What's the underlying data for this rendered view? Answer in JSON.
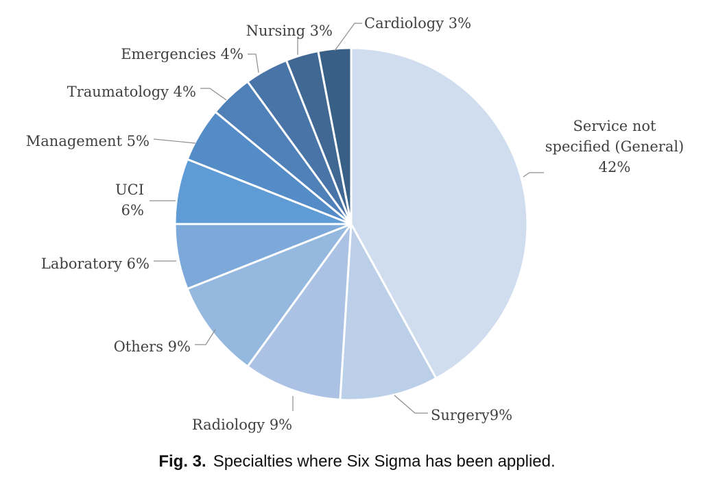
{
  "chart_data": {
    "type": "pie",
    "title": "",
    "start": "12 o'clock",
    "direction": "clockwise",
    "slices": [
      {
        "name": "Service not specified (General)",
        "value": 42,
        "color": "#d0ddef",
        "label_lines": [
          "Service not",
          "specified (General)",
          "42%"
        ]
      },
      {
        "name": "Surgery",
        "value": 9,
        "color": "#bccfe9",
        "label_lines": [
          "Surgery9%"
        ]
      },
      {
        "name": "Radiology",
        "value": 9,
        "color": "#acc2e4",
        "label_lines": [
          "Radiology 9%"
        ]
      },
      {
        "name": "Others",
        "value": 9,
        "color": "#95b8df",
        "label_lines": [
          "Others 9%"
        ]
      },
      {
        "name": "Laboratory",
        "value": 6,
        "color": "#7ca9da",
        "label_lines": [
          "Laboratory 6%"
        ]
      },
      {
        "name": "UCI",
        "value": 6,
        "color": "#5f9bd4",
        "label_lines": [
          "UCI",
          "6%"
        ]
      },
      {
        "name": "Management",
        "value": 5,
        "color": "#548cc7",
        "label_lines": [
          "Management 5%"
        ]
      },
      {
        "name": "Traumatology",
        "value": 4,
        "color": "#4f80b8",
        "label_lines": [
          "Traumatology 4%"
        ]
      },
      {
        "name": "Emergencies",
        "value": 4,
        "color": "#4874a7",
        "label_lines": [
          "Emergencies 4%"
        ]
      },
      {
        "name": "Nursing",
        "value": 3,
        "color": "#406893",
        "label_lines": [
          "Nursing 3%"
        ]
      },
      {
        "name": "Cardiology",
        "value": 3,
        "color": "#385f85",
        "label_lines": [
          "Cardiology 3%"
        ]
      }
    ]
  },
  "caption": {
    "fig": "Fig. 3.",
    "text": "Specialties where Six Sigma has been applied."
  }
}
